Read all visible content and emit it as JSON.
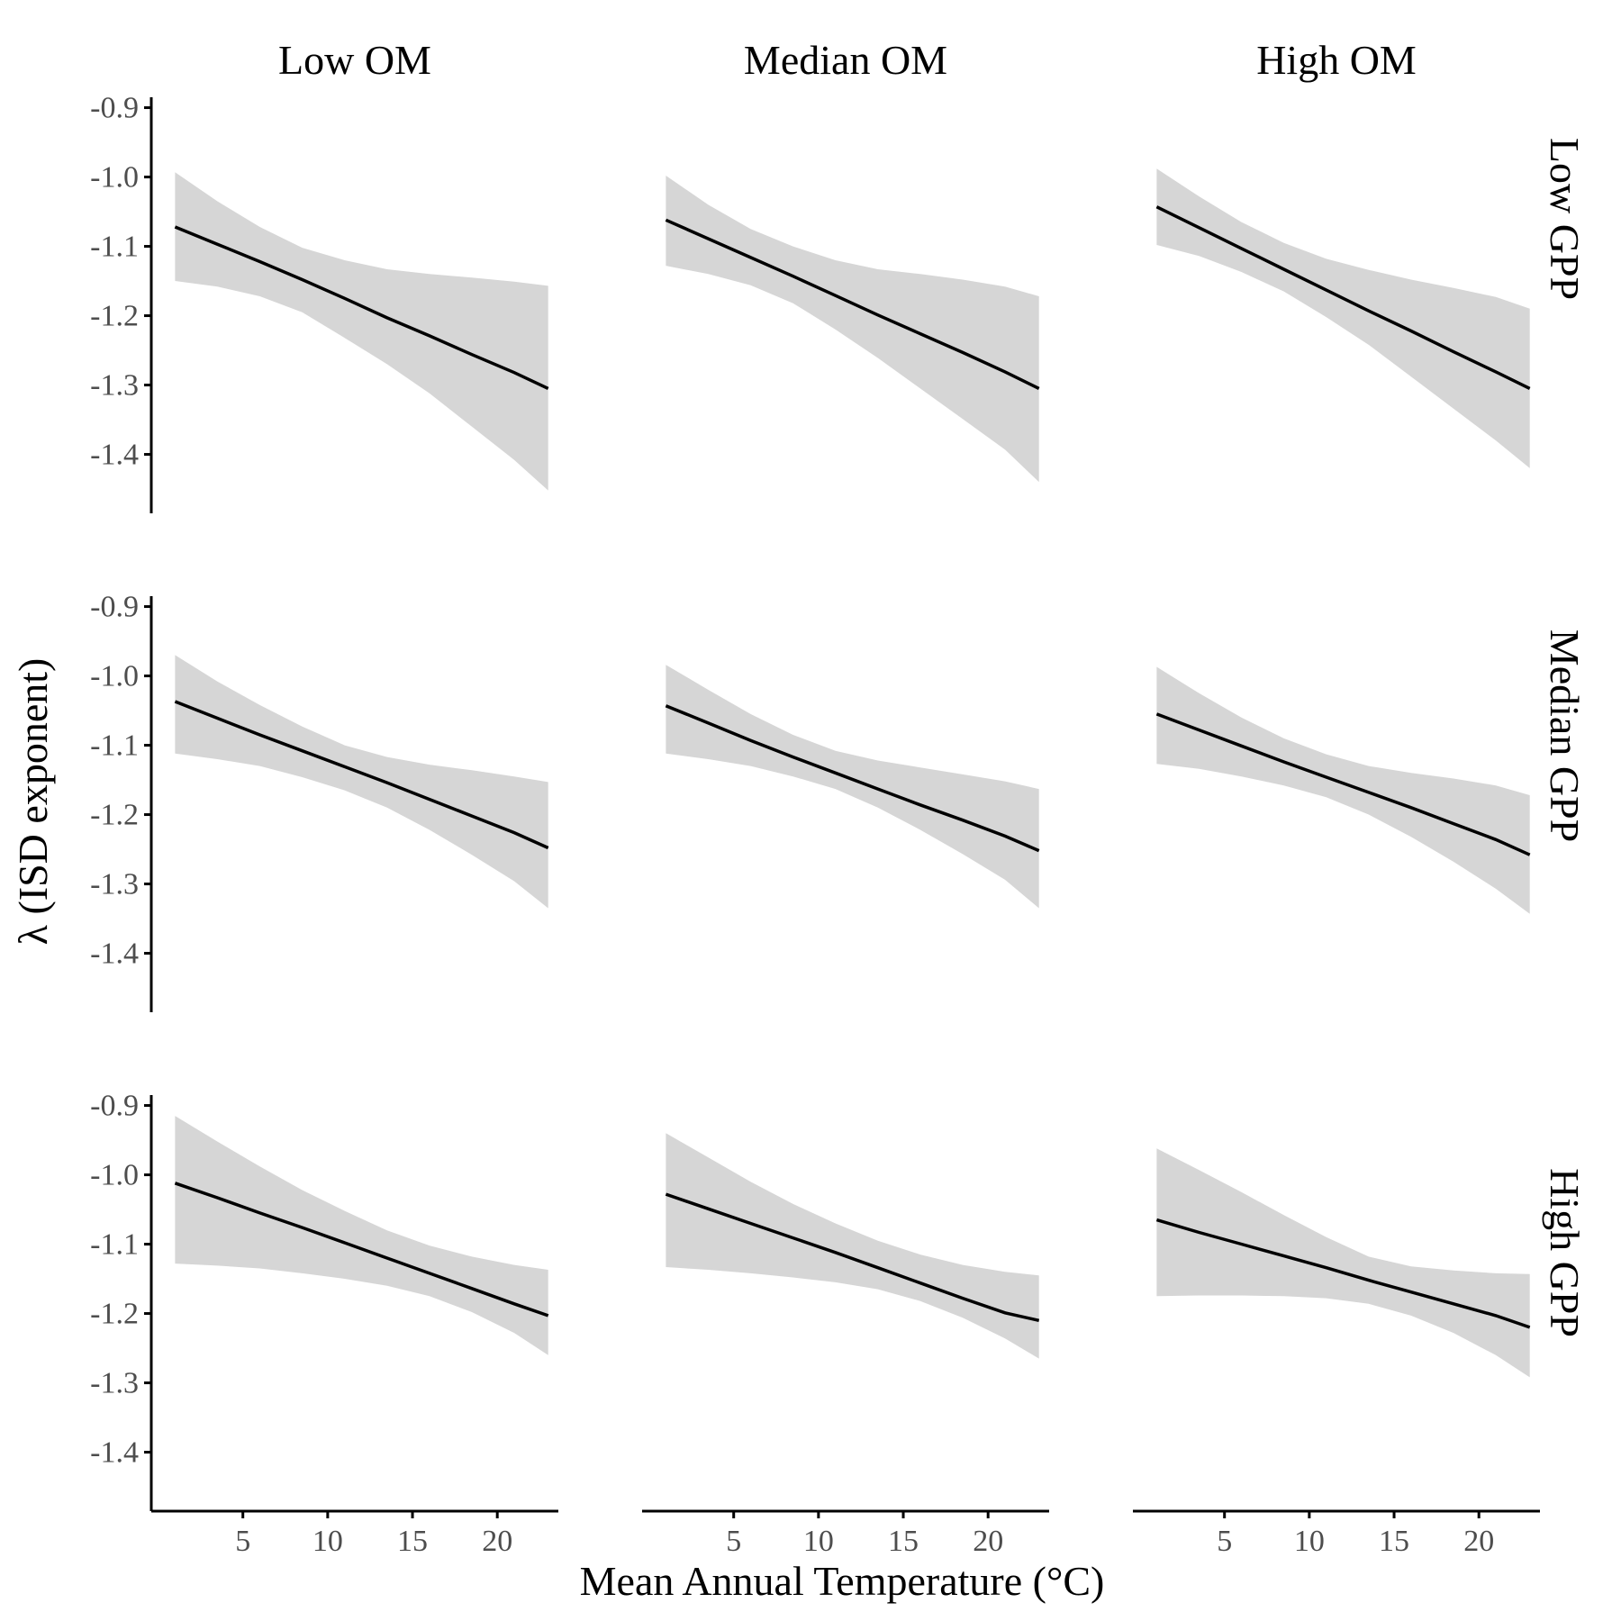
{
  "chart_data": {
    "type": "line",
    "xlabel": "Mean Annual Temperature (°C)",
    "ylabel": "λ (ISD exponent)",
    "col_labels": [
      "Low OM",
      "Median OM",
      "High OM"
    ],
    "row_labels": [
      "Low GPP",
      "Median GPP",
      "High GPP"
    ],
    "xlim": [
      -0.4,
      23.6
    ],
    "ylim": [
      -1.485,
      -0.885
    ],
    "x_ticks": [
      5,
      10,
      15,
      20
    ],
    "y_ticks": [
      -0.9,
      -1.0,
      -1.1,
      -1.2,
      -1.3,
      -1.4
    ],
    "x_tick_labels": [
      "5",
      "10",
      "15",
      "20"
    ],
    "y_tick_labels": [
      "-0.9",
      "-1.0",
      "-1.1",
      "-1.2",
      "-1.3",
      "-1.4"
    ],
    "x_grid": [
      1,
      3.5,
      6,
      8.5,
      11,
      13.5,
      16,
      18.5,
      21,
      23
    ],
    "grid": false,
    "legend": "none",
    "panels": [
      {
        "row": 0,
        "col": 0,
        "fit": [
          -1.072,
          -1.097,
          -1.122,
          -1.148,
          -1.175,
          -1.203,
          -1.229,
          -1.256,
          -1.282,
          -1.305
        ],
        "lower": [
          -1.15,
          -1.158,
          -1.172,
          -1.195,
          -1.232,
          -1.27,
          -1.312,
          -1.36,
          -1.408,
          -1.452
        ],
        "upper": [
          -0.993,
          -1.035,
          -1.072,
          -1.102,
          -1.12,
          -1.133,
          -1.14,
          -1.145,
          -1.151,
          -1.157
        ]
      },
      {
        "row": 0,
        "col": 1,
        "fit": [
          -1.062,
          -1.089,
          -1.116,
          -1.143,
          -1.171,
          -1.199,
          -1.226,
          -1.253,
          -1.281,
          -1.305
        ],
        "lower": [
          -1.128,
          -1.14,
          -1.156,
          -1.182,
          -1.22,
          -1.261,
          -1.305,
          -1.349,
          -1.393,
          -1.44
        ],
        "upper": [
          -0.998,
          -1.04,
          -1.075,
          -1.1,
          -1.12,
          -1.133,
          -1.14,
          -1.148,
          -1.158,
          -1.172
        ]
      },
      {
        "row": 1,
        "col": 0,
        "fit": [
          -1.037,
          -1.061,
          -1.085,
          -1.108,
          -1.131,
          -1.154,
          -1.178,
          -1.202,
          -1.226,
          -1.248
        ],
        "lower": [
          -1.112,
          -1.12,
          -1.13,
          -1.146,
          -1.165,
          -1.19,
          -1.222,
          -1.258,
          -1.296,
          -1.335
        ],
        "upper": [
          -0.97,
          -1.008,
          -1.042,
          -1.073,
          -1.1,
          -1.117,
          -1.128,
          -1.136,
          -1.145,
          -1.153
        ]
      },
      {
        "row": 1,
        "col": 1,
        "fit": [
          -1.043,
          -1.068,
          -1.093,
          -1.117,
          -1.14,
          -1.163,
          -1.186,
          -1.208,
          -1.231,
          -1.252
        ],
        "lower": [
          -1.112,
          -1.12,
          -1.13,
          -1.145,
          -1.163,
          -1.19,
          -1.222,
          -1.257,
          -1.294,
          -1.335
        ],
        "upper": [
          -0.984,
          -1.02,
          -1.055,
          -1.085,
          -1.108,
          -1.122,
          -1.132,
          -1.142,
          -1.152,
          -1.163
        ]
      },
      {
        "row": 0,
        "col": 2,
        "fit": [
          -1.043,
          -1.073,
          -1.103,
          -1.133,
          -1.163,
          -1.193,
          -1.222,
          -1.252,
          -1.281,
          -1.305
        ],
        "lower": [
          -1.098,
          -1.114,
          -1.137,
          -1.165,
          -1.202,
          -1.242,
          -1.288,
          -1.334,
          -1.38,
          -1.42
        ],
        "upper": [
          -0.988,
          -1.028,
          -1.065,
          -1.095,
          -1.118,
          -1.134,
          -1.148,
          -1.16,
          -1.173,
          -1.19
        ]
      },
      {
        "row": 1,
        "col": 2,
        "fit": [
          -1.055,
          -1.078,
          -1.101,
          -1.124,
          -1.146,
          -1.168,
          -1.19,
          -1.213,
          -1.236,
          -1.258
        ],
        "lower": [
          -1.127,
          -1.134,
          -1.145,
          -1.158,
          -1.175,
          -1.2,
          -1.232,
          -1.268,
          -1.307,
          -1.343
        ],
        "upper": [
          -0.987,
          -1.025,
          -1.06,
          -1.09,
          -1.113,
          -1.13,
          -1.14,
          -1.148,
          -1.158,
          -1.172
        ]
      },
      {
        "row": 2,
        "col": 0,
        "fit": [
          -1.012,
          -1.033,
          -1.055,
          -1.076,
          -1.098,
          -1.12,
          -1.142,
          -1.164,
          -1.186,
          -1.203
        ],
        "lower": [
          -1.128,
          -1.131,
          -1.135,
          -1.142,
          -1.15,
          -1.16,
          -1.175,
          -1.198,
          -1.228,
          -1.26
        ],
        "upper": [
          -0.915,
          -0.952,
          -0.988,
          -1.022,
          -1.052,
          -1.08,
          -1.102,
          -1.118,
          -1.13,
          -1.137
        ]
      },
      {
        "row": 2,
        "col": 1,
        "fit": [
          -1.028,
          -1.049,
          -1.07,
          -1.091,
          -1.112,
          -1.134,
          -1.156,
          -1.178,
          -1.199,
          -1.21
        ],
        "lower": [
          -1.133,
          -1.137,
          -1.142,
          -1.148,
          -1.155,
          -1.165,
          -1.182,
          -1.206,
          -1.236,
          -1.265
        ],
        "upper": [
          -0.94,
          -0.975,
          -1.01,
          -1.042,
          -1.07,
          -1.095,
          -1.115,
          -1.13,
          -1.14,
          -1.145
        ]
      },
      {
        "row": 2,
        "col": 2,
        "fit": [
          -1.065,
          -1.083,
          -1.1,
          -1.117,
          -1.134,
          -1.152,
          -1.169,
          -1.186,
          -1.203,
          -1.22
        ],
        "lower": [
          -1.175,
          -1.174,
          -1.174,
          -1.175,
          -1.178,
          -1.186,
          -1.203,
          -1.228,
          -1.26,
          -1.292
        ],
        "upper": [
          -0.962,
          -0.993,
          -1.025,
          -1.058,
          -1.09,
          -1.118,
          -1.132,
          -1.138,
          -1.142,
          -1.143
        ]
      }
    ]
  }
}
